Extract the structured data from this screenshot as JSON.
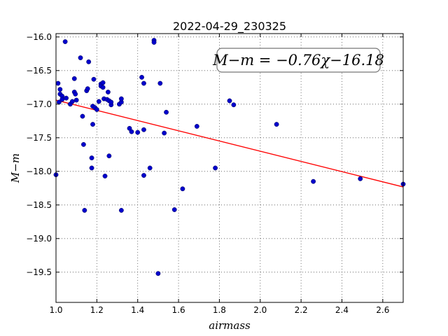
{
  "chart_data": {
    "type": "scatter",
    "title": "2022-04-29_230325",
    "xlabel": "airmass",
    "ylabel": "M−m",
    "xlim": [
      1.0,
      2.7
    ],
    "ylim": [
      -15.95,
      -19.95
    ],
    "y_inverted": true,
    "grid": true,
    "x_ticks": [
      1.0,
      1.2,
      1.4,
      1.6,
      1.8,
      2.0,
      2.2,
      2.4,
      2.6
    ],
    "x_tick_labels": [
      "1.0",
      "1.2",
      "1.4",
      "1.6",
      "1.8",
      "2.0",
      "2.2",
      "2.4",
      "2.6"
    ],
    "y_ticks": [
      -16.0,
      -16.5,
      -17.0,
      -17.5,
      -18.0,
      -18.5,
      -19.0,
      -19.5
    ],
    "y_tick_labels": [
      "−16.0",
      "−16.5",
      "−17.0",
      "−17.5",
      "−18.0",
      "−18.5",
      "−19.0",
      "−19.5"
    ],
    "annotation": "M−m = −0.76χ−16.18",
    "fit": {
      "slope": -0.76,
      "intercept": -16.18,
      "color": "#ff0000"
    },
    "marker_color": "#0000cc",
    "points": [
      [
        1.0,
        -18.05
      ],
      [
        1.01,
        -16.69
      ],
      [
        1.015,
        -16.97
      ],
      [
        1.02,
        -16.78
      ],
      [
        1.02,
        -16.85
      ],
      [
        1.03,
        -16.88
      ],
      [
        1.03,
        -16.93
      ],
      [
        1.045,
        -16.07
      ],
      [
        1.05,
        -16.91
      ],
      [
        1.07,
        -17.0
      ],
      [
        1.08,
        -16.96
      ],
      [
        1.09,
        -16.62
      ],
      [
        1.09,
        -16.82
      ],
      [
        1.095,
        -16.85
      ],
      [
        1.1,
        -16.94
      ],
      [
        1.12,
        -16.31
      ],
      [
        1.13,
        -17.18
      ],
      [
        1.135,
        -17.6
      ],
      [
        1.14,
        -18.58
      ],
      [
        1.15,
        -16.8
      ],
      [
        1.155,
        -16.77
      ],
      [
        1.16,
        -16.37
      ],
      [
        1.175,
        -17.95
      ],
      [
        1.175,
        -17.8
      ],
      [
        1.18,
        -17.3
      ],
      [
        1.18,
        -17.03
      ],
      [
        1.185,
        -16.63
      ],
      [
        1.19,
        -17.05
      ],
      [
        1.2,
        -17.08
      ],
      [
        1.21,
        -16.96
      ],
      [
        1.22,
        -16.7
      ],
      [
        1.22,
        -16.73
      ],
      [
        1.23,
        -16.68
      ],
      [
        1.23,
        -16.75
      ],
      [
        1.235,
        -16.92
      ],
      [
        1.24,
        -18.07
      ],
      [
        1.25,
        -16.93
      ],
      [
        1.255,
        -16.82
      ],
      [
        1.26,
        -16.95
      ],
      [
        1.26,
        -17.77
      ],
      [
        1.27,
        -17.01
      ],
      [
        1.27,
        -16.97
      ],
      [
        1.31,
        -17.0
      ],
      [
        1.32,
        -16.97
      ],
      [
        1.32,
        -18.58
      ],
      [
        1.32,
        -16.92
      ],
      [
        1.36,
        -17.36
      ],
      [
        1.37,
        -17.41
      ],
      [
        1.4,
        -17.42
      ],
      [
        1.42,
        -16.6
      ],
      [
        1.43,
        -16.69
      ],
      [
        1.43,
        -17.38
      ],
      [
        1.43,
        -18.06
      ],
      [
        1.46,
        -17.95
      ],
      [
        1.48,
        -16.05
      ],
      [
        1.48,
        -16.08
      ],
      [
        1.5,
        -19.52
      ],
      [
        1.51,
        -16.69
      ],
      [
        1.53,
        -17.43
      ],
      [
        1.54,
        -17.12
      ],
      [
        1.58,
        -18.57
      ],
      [
        1.62,
        -18.26
      ],
      [
        1.69,
        -17.33
      ],
      [
        1.78,
        -17.95
      ],
      [
        1.85,
        -16.95
      ],
      [
        1.87,
        -17.01
      ],
      [
        2.08,
        -17.3
      ],
      [
        2.26,
        -18.15
      ],
      [
        2.49,
        -18.11
      ],
      [
        2.7,
        -18.19
      ]
    ]
  }
}
